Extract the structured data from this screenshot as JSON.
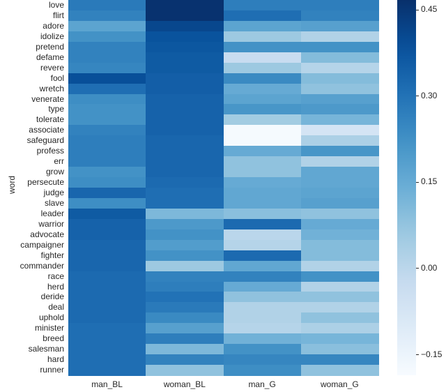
{
  "chart_data": {
    "type": "heatmap",
    "title": "",
    "xlabel": "",
    "ylabel": "word",
    "colormap": "Blues",
    "vmin": -0.187,
    "vmax": 0.466,
    "colorbar_ticks": [
      0.45,
      0.3,
      0.15,
      0.0,
      -0.15
    ],
    "colorbar_tick_labels": [
      "0.45",
      "0.30",
      "0.15",
      "0.00",
      "−0.15"
    ],
    "columns": [
      "man_BL",
      "woman_BL",
      "man_G",
      "woman_G"
    ],
    "rows": [
      "love",
      "flirt",
      "adore",
      "idolize",
      "pretend",
      "defame",
      "revere",
      "fool",
      "wretch",
      "venerate",
      "type",
      "tolerate",
      "associate",
      "safeguard",
      "profess",
      "err",
      "grow",
      "persecute",
      "judge",
      "slave",
      "leader",
      "warrior",
      "advocate",
      "campaigner",
      "fighter",
      "commander",
      "race",
      "herd",
      "deride",
      "deal",
      "uphold",
      "minister",
      "breed",
      "salesman",
      "hard",
      "runner"
    ],
    "values": [
      [
        0.28,
        0.46,
        0.27,
        0.27
      ],
      [
        0.26,
        0.46,
        0.31,
        0.26
      ],
      [
        0.17,
        0.41,
        0.17,
        0.18
      ],
      [
        0.22,
        0.38,
        0.06,
        0.02
      ],
      [
        0.26,
        0.37,
        0.22,
        0.22
      ],
      [
        0.26,
        0.36,
        -0.03,
        0.1
      ],
      [
        0.25,
        0.36,
        0.06,
        0.01
      ],
      [
        0.39,
        0.35,
        0.24,
        0.1
      ],
      [
        0.31,
        0.35,
        0.15,
        0.08
      ],
      [
        0.23,
        0.34,
        0.17,
        0.18
      ],
      [
        0.22,
        0.34,
        0.21,
        0.2
      ],
      [
        0.22,
        0.34,
        0.05,
        0.12
      ],
      [
        0.26,
        0.34,
        -0.18,
        -0.07
      ],
      [
        0.27,
        0.33,
        -0.18,
        0.03
      ],
      [
        0.27,
        0.33,
        0.15,
        0.21
      ],
      [
        0.27,
        0.33,
        0.08,
        0.02
      ],
      [
        0.22,
        0.33,
        0.08,
        0.16
      ],
      [
        0.23,
        0.32,
        0.15,
        0.16
      ],
      [
        0.33,
        0.31,
        0.16,
        0.17
      ],
      [
        0.23,
        0.31,
        0.16,
        0.18
      ],
      [
        0.36,
        0.11,
        0.09,
        0.08
      ],
      [
        0.34,
        0.2,
        0.32,
        0.15
      ],
      [
        0.34,
        0.22,
        0.0,
        0.13
      ],
      [
        0.33,
        0.19,
        0.01,
        0.1
      ],
      [
        0.33,
        0.22,
        0.32,
        0.1
      ],
      [
        0.33,
        0.06,
        0.16,
        0.02
      ],
      [
        0.32,
        0.26,
        0.26,
        0.22
      ],
      [
        0.32,
        0.27,
        0.15,
        0.02
      ],
      [
        0.32,
        0.3,
        0.08,
        0.08
      ],
      [
        0.32,
        0.28,
        0.02,
        0.02
      ],
      [
        0.32,
        0.24,
        0.02,
        0.08
      ],
      [
        0.31,
        0.18,
        0.01,
        0.03
      ],
      [
        0.31,
        0.27,
        0.13,
        0.12
      ],
      [
        0.31,
        0.11,
        0.22,
        0.09
      ],
      [
        0.31,
        0.26,
        0.25,
        0.25
      ],
      [
        0.31,
        0.08,
        0.23,
        0.08
      ]
    ],
    "grid": false,
    "legend_position": "right-colorbar"
  }
}
